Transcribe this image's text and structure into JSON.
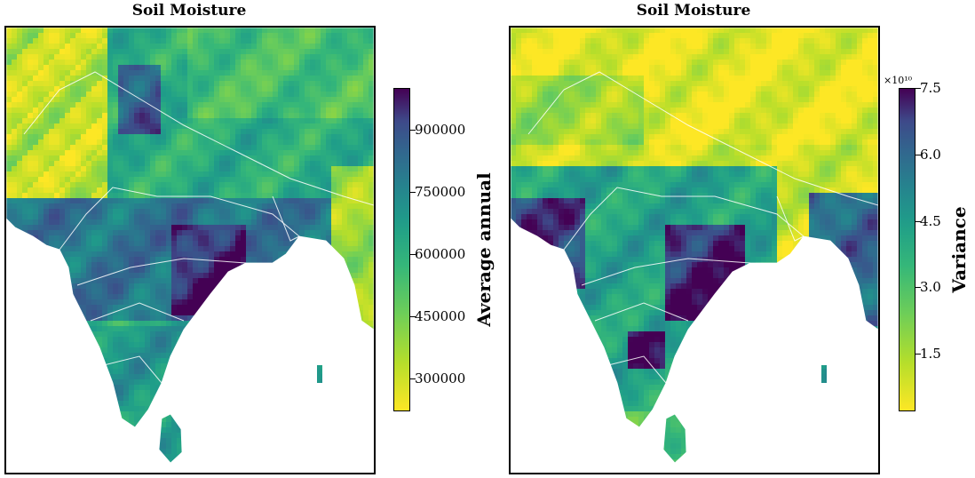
{
  "chart_data": [
    {
      "type": "heatmap",
      "title": "Soil Moisture",
      "colormap": "viridis_r",
      "colorbar": {
        "label": "Average annual",
        "ticks": [
          300000,
          450000,
          600000,
          750000,
          900000
        ],
        "tick_labels": [
          "300000",
          "450000",
          "600000",
          "750000",
          "900000"
        ],
        "range": [
          220000,
          1000000
        ]
      }
    },
    {
      "type": "heatmap",
      "title": "Soil Moisture",
      "colormap": "viridis_r",
      "colorbar": {
        "label": "Variance",
        "exponent": "×10¹⁰",
        "ticks": [
          1.5,
          3.0,
          4.5,
          6.0,
          7.5
        ],
        "tick_labels": [
          "1.5",
          "3.0",
          "4.5",
          "6.0",
          "7.5"
        ],
        "range": [
          0.2,
          7.5
        ]
      }
    }
  ],
  "colors": {
    "viridis_low": "#fde725",
    "viridis_mid": "#21918c",
    "viridis_high": "#440154",
    "boundary": "#ffffff"
  }
}
